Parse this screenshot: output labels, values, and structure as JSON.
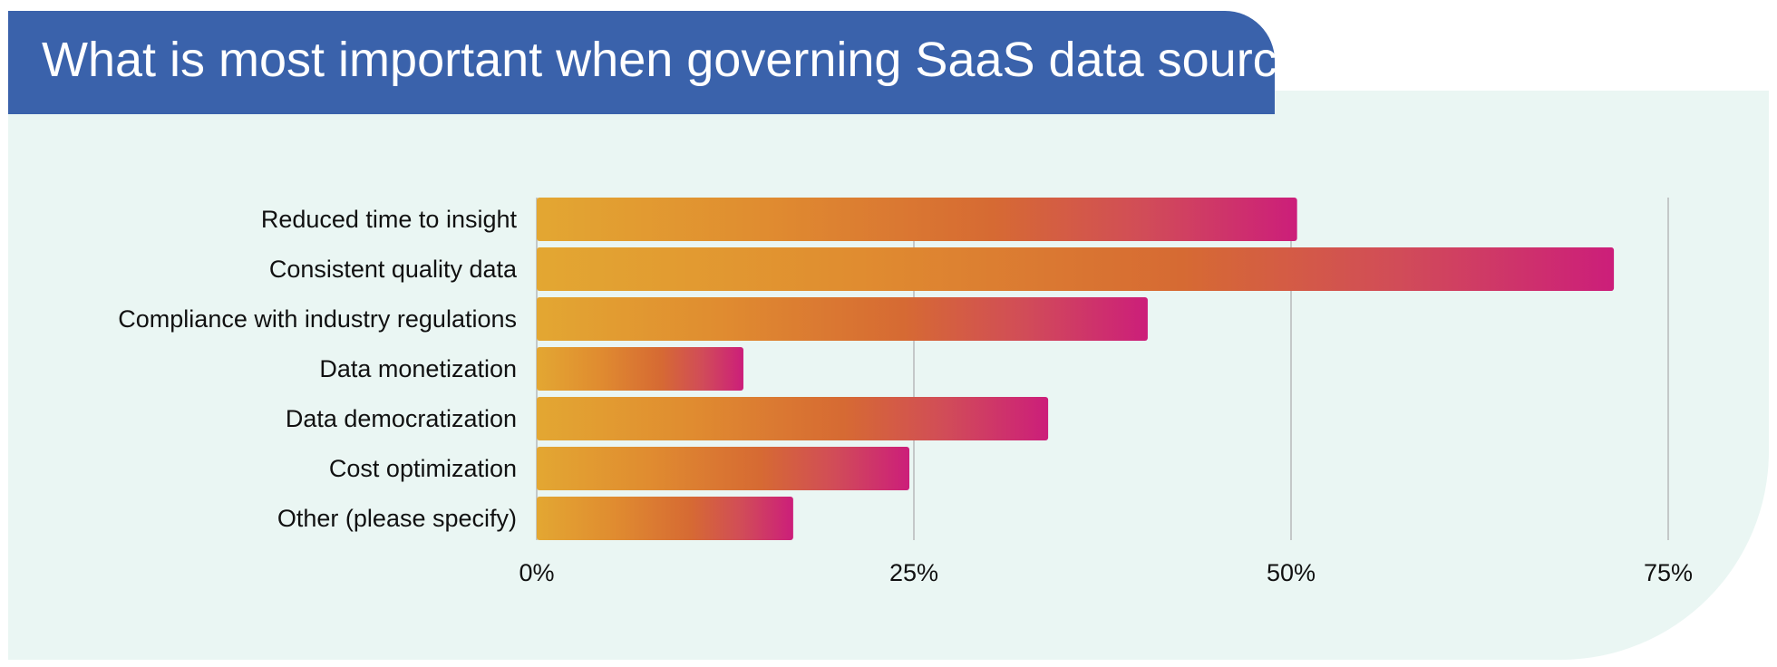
{
  "header": {
    "title": "What is most important when governing SaaS data sources?"
  },
  "chart_data": {
    "type": "bar",
    "orientation": "horizontal",
    "title": "What is most important when governing SaaS data sources?",
    "categories": [
      "Reduced time to insight",
      "Consistent quality data",
      "Compliance with industry regulations",
      "Data monetization",
      "Data democratization",
      "Cost optimization",
      "Other (please specify)"
    ],
    "values": [
      50.4,
      71.4,
      40.5,
      13.7,
      33.9,
      24.7,
      17.0
    ],
    "unit": "%",
    "xlim": [
      0,
      75
    ],
    "x_ticks": [
      0,
      25,
      50,
      75
    ],
    "x_tick_labels": [
      "0%",
      "25%",
      "50%",
      "75%"
    ],
    "grid": true,
    "legend": "none",
    "colors": {
      "bar_gradient": [
        "#e3a732",
        "#e08c30",
        "#d66a33",
        "#d14c58",
        "#cc1e7a"
      ],
      "title_background": "#3a62ab",
      "panel_background": "#eaf6f3",
      "gridline": "#c4c8c8"
    }
  }
}
